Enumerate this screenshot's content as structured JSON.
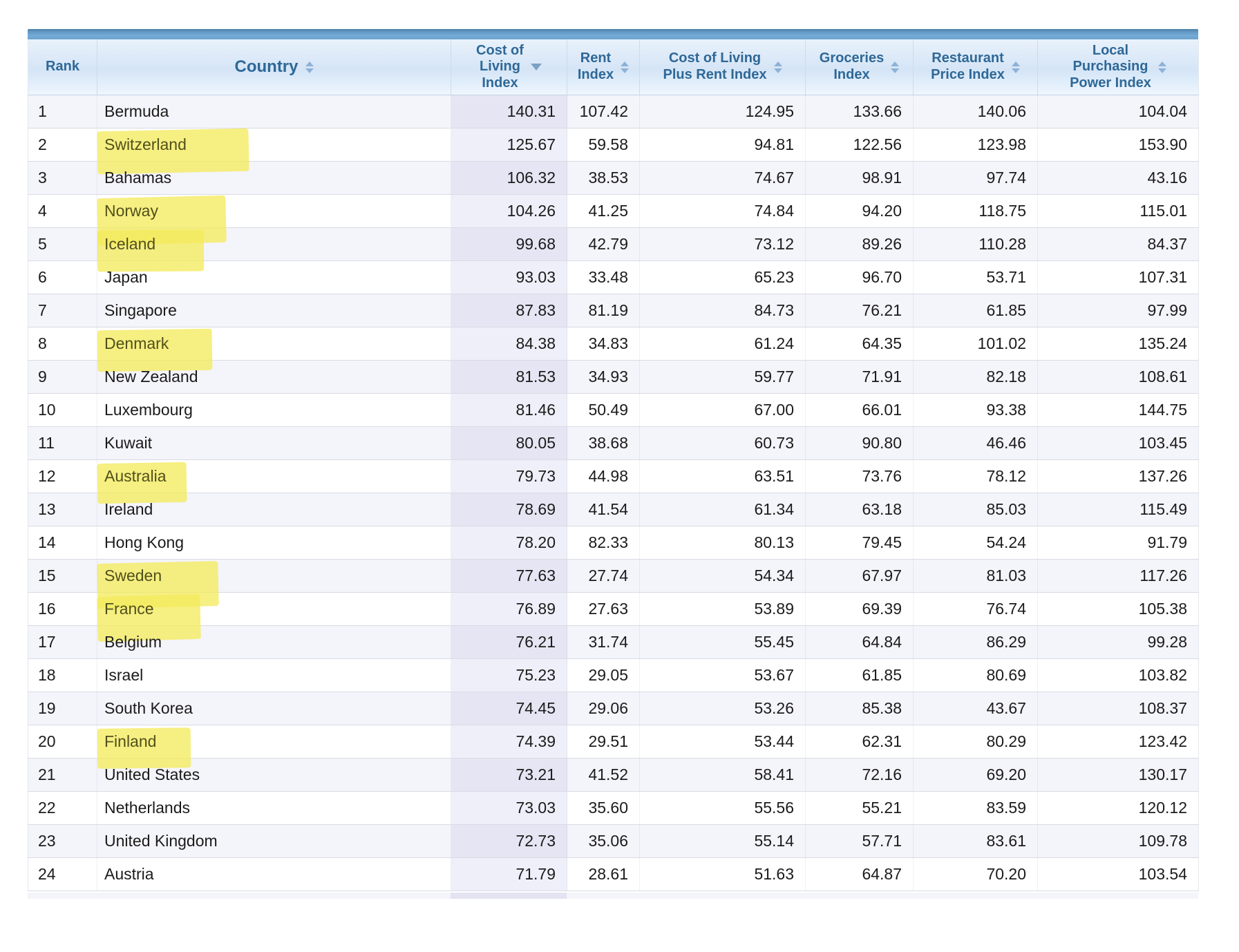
{
  "theme": {
    "top_bar_blue": "#6ba2ce",
    "header_text_blue": "#2e6897",
    "row_alt_background": "#f4f4fb",
    "sorted_column_tint": "#e5e5f3",
    "highlight_yellow": "#f3ea5e",
    "sort_icon_blue": "#8db2d8"
  },
  "table": {
    "columns": [
      {
        "key": "rank",
        "label": "Rank",
        "sortable": false,
        "sort": null
      },
      {
        "key": "country",
        "label": "Country",
        "sortable": true,
        "sort": "both"
      },
      {
        "key": "cost_of_living",
        "label": "Cost of\nLiving\nIndex",
        "sortable": true,
        "sort": "desc"
      },
      {
        "key": "rent",
        "label": "Rent\nIndex",
        "sortable": true,
        "sort": "both"
      },
      {
        "key": "col_plus_rent",
        "label": "Cost of Living\nPlus Rent Index",
        "sortable": true,
        "sort": "both"
      },
      {
        "key": "groceries",
        "label": "Groceries\nIndex",
        "sortable": true,
        "sort": "both"
      },
      {
        "key": "restaurant",
        "label": "Restaurant\nPrice Index",
        "sortable": true,
        "sort": "both"
      },
      {
        "key": "purchasing_power",
        "label": "Local\nPurchasing\nPower Index",
        "sortable": true,
        "sort": "both"
      }
    ],
    "sorted_column": "cost_of_living",
    "sort_direction": "descending",
    "rows": [
      {
        "rank": "1",
        "country": "Bermuda",
        "highlighted": false,
        "cost_of_living": "140.31",
        "rent": "107.42",
        "col_plus_rent": "124.95",
        "groceries": "133.66",
        "restaurant": "140.06",
        "purchasing_power": "104.04"
      },
      {
        "rank": "2",
        "country": "Switzerland",
        "highlighted": true,
        "cost_of_living": "125.67",
        "rent": "59.58",
        "col_plus_rent": "94.81",
        "groceries": "122.56",
        "restaurant": "123.98",
        "purchasing_power": "153.90"
      },
      {
        "rank": "3",
        "country": "Bahamas",
        "highlighted": false,
        "cost_of_living": "106.32",
        "rent": "38.53",
        "col_plus_rent": "74.67",
        "groceries": "98.91",
        "restaurant": "97.74",
        "purchasing_power": "43.16"
      },
      {
        "rank": "4",
        "country": "Norway",
        "highlighted": true,
        "cost_of_living": "104.26",
        "rent": "41.25",
        "col_plus_rent": "74.84",
        "groceries": "94.20",
        "restaurant": "118.75",
        "purchasing_power": "115.01"
      },
      {
        "rank": "5",
        "country": "Iceland",
        "highlighted": true,
        "cost_of_living": "99.68",
        "rent": "42.79",
        "col_plus_rent": "73.12",
        "groceries": "89.26",
        "restaurant": "110.28",
        "purchasing_power": "84.37"
      },
      {
        "rank": "6",
        "country": "Japan",
        "highlighted": false,
        "cost_of_living": "93.03",
        "rent": "33.48",
        "col_plus_rent": "65.23",
        "groceries": "96.70",
        "restaurant": "53.71",
        "purchasing_power": "107.31"
      },
      {
        "rank": "7",
        "country": "Singapore",
        "highlighted": false,
        "cost_of_living": "87.83",
        "rent": "81.19",
        "col_plus_rent": "84.73",
        "groceries": "76.21",
        "restaurant": "61.85",
        "purchasing_power": "97.99"
      },
      {
        "rank": "8",
        "country": "Denmark",
        "highlighted": true,
        "cost_of_living": "84.38",
        "rent": "34.83",
        "col_plus_rent": "61.24",
        "groceries": "64.35",
        "restaurant": "101.02",
        "purchasing_power": "135.24"
      },
      {
        "rank": "9",
        "country": "New Zealand",
        "highlighted": false,
        "cost_of_living": "81.53",
        "rent": "34.93",
        "col_plus_rent": "59.77",
        "groceries": "71.91",
        "restaurant": "82.18",
        "purchasing_power": "108.61"
      },
      {
        "rank": "10",
        "country": "Luxembourg",
        "highlighted": false,
        "cost_of_living": "81.46",
        "rent": "50.49",
        "col_plus_rent": "67.00",
        "groceries": "66.01",
        "restaurant": "93.38",
        "purchasing_power": "144.75"
      },
      {
        "rank": "11",
        "country": "Kuwait",
        "highlighted": false,
        "cost_of_living": "80.05",
        "rent": "38.68",
        "col_plus_rent": "60.73",
        "groceries": "90.80",
        "restaurant": "46.46",
        "purchasing_power": "103.45"
      },
      {
        "rank": "12",
        "country": "Australia",
        "highlighted": true,
        "cost_of_living": "79.73",
        "rent": "44.98",
        "col_plus_rent": "63.51",
        "groceries": "73.76",
        "restaurant": "78.12",
        "purchasing_power": "137.26"
      },
      {
        "rank": "13",
        "country": "Ireland",
        "highlighted": false,
        "cost_of_living": "78.69",
        "rent": "41.54",
        "col_plus_rent": "61.34",
        "groceries": "63.18",
        "restaurant": "85.03",
        "purchasing_power": "115.49"
      },
      {
        "rank": "14",
        "country": "Hong Kong",
        "highlighted": false,
        "cost_of_living": "78.20",
        "rent": "82.33",
        "col_plus_rent": "80.13",
        "groceries": "79.45",
        "restaurant": "54.24",
        "purchasing_power": "91.79"
      },
      {
        "rank": "15",
        "country": "Sweden",
        "highlighted": true,
        "cost_of_living": "77.63",
        "rent": "27.74",
        "col_plus_rent": "54.34",
        "groceries": "67.97",
        "restaurant": "81.03",
        "purchasing_power": "117.26"
      },
      {
        "rank": "16",
        "country": "France",
        "highlighted": true,
        "cost_of_living": "76.89",
        "rent": "27.63",
        "col_plus_rent": "53.89",
        "groceries": "69.39",
        "restaurant": "76.74",
        "purchasing_power": "105.38"
      },
      {
        "rank": "17",
        "country": "Belgium",
        "highlighted": false,
        "cost_of_living": "76.21",
        "rent": "31.74",
        "col_plus_rent": "55.45",
        "groceries": "64.84",
        "restaurant": "86.29",
        "purchasing_power": "99.28"
      },
      {
        "rank": "18",
        "country": "Israel",
        "highlighted": false,
        "cost_of_living": "75.23",
        "rent": "29.05",
        "col_plus_rent": "53.67",
        "groceries": "61.85",
        "restaurant": "80.69",
        "purchasing_power": "103.82"
      },
      {
        "rank": "19",
        "country": "South Korea",
        "highlighted": false,
        "cost_of_living": "74.45",
        "rent": "29.06",
        "col_plus_rent": "53.26",
        "groceries": "85.38",
        "restaurant": "43.67",
        "purchasing_power": "108.37"
      },
      {
        "rank": "20",
        "country": "Finland",
        "highlighted": true,
        "cost_of_living": "74.39",
        "rent": "29.51",
        "col_plus_rent": "53.44",
        "groceries": "62.31",
        "restaurant": "80.29",
        "purchasing_power": "123.42"
      },
      {
        "rank": "21",
        "country": "United States",
        "highlighted": false,
        "cost_of_living": "73.21",
        "rent": "41.52",
        "col_plus_rent": "58.41",
        "groceries": "72.16",
        "restaurant": "69.20",
        "purchasing_power": "130.17"
      },
      {
        "rank": "22",
        "country": "Netherlands",
        "highlighted": false,
        "cost_of_living": "73.03",
        "rent": "35.60",
        "col_plus_rent": "55.56",
        "groceries": "55.21",
        "restaurant": "83.59",
        "purchasing_power": "120.12"
      },
      {
        "rank": "23",
        "country": "United Kingdom",
        "highlighted": false,
        "cost_of_living": "72.73",
        "rent": "35.06",
        "col_plus_rent": "55.14",
        "groceries": "57.71",
        "restaurant": "83.61",
        "purchasing_power": "109.78"
      },
      {
        "rank": "24",
        "country": "Austria",
        "highlighted": false,
        "cost_of_living": "71.79",
        "rent": "28.61",
        "col_plus_rent": "51.63",
        "groceries": "64.87",
        "restaurant": "70.20",
        "purchasing_power": "103.54"
      }
    ]
  }
}
